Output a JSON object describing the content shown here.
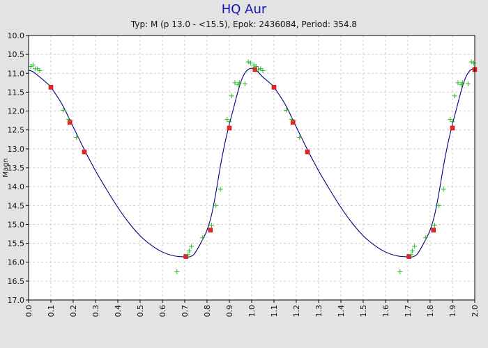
{
  "chart_data": {
    "type": "scatter",
    "title": "HQ Aur",
    "subtitle": "Typ: M (p 13.0 - <15.5), Epok: 2436084, Period: 354.8",
    "xlabel": "",
    "ylabel": "Magn",
    "xlim": [
      0.0,
      2.0
    ],
    "ylim": [
      10.0,
      17.0
    ],
    "y_inverted": true,
    "grid": true,
    "x_ticks": [
      "0.0",
      "0.1",
      "0.2",
      "0.3",
      "0.4",
      "0.5",
      "0.6",
      "0.7",
      "0.8",
      "0.9",
      "1.0",
      "1.1",
      "1.2",
      "1.3",
      "1.4",
      "1.5",
      "1.6",
      "1.7",
      "1.8",
      "1.9",
      "2.0"
    ],
    "y_ticks": [
      "10.0",
      "10.5",
      "11.0",
      "11.5",
      "12.0",
      "12.5",
      "13.0",
      "13.5",
      "14.0",
      "14.5",
      "15.0",
      "15.5",
      "16.0",
      "16.5",
      "17.0"
    ],
    "series": [
      {
        "kind": "curve",
        "color": "#00007f",
        "x": [
          0.0,
          0.02,
          0.05,
          0.08,
          0.1,
          0.15,
          0.2,
          0.25,
          0.3,
          0.35,
          0.4,
          0.45,
          0.5,
          0.55,
          0.6,
          0.65,
          0.7,
          0.72,
          0.74,
          0.76,
          0.78,
          0.8,
          0.82,
          0.84,
          0.86,
          0.88,
          0.9,
          0.92,
          0.94,
          0.96,
          0.98,
          1.0,
          1.02,
          1.05,
          1.08,
          1.1,
          1.15,
          1.2,
          1.25,
          1.3,
          1.35,
          1.4,
          1.45,
          1.5,
          1.55,
          1.6,
          1.65,
          1.7,
          1.72,
          1.74,
          1.76,
          1.78,
          1.8,
          1.82,
          1.84,
          1.86,
          1.88,
          1.9,
          1.92,
          1.94,
          1.96,
          1.98,
          2.0
        ],
        "y": [
          10.92,
          10.96,
          11.1,
          11.25,
          11.37,
          11.82,
          12.42,
          13.02,
          13.58,
          14.08,
          14.55,
          14.96,
          15.3,
          15.55,
          15.73,
          15.83,
          15.86,
          15.86,
          15.8,
          15.62,
          15.4,
          15.15,
          14.75,
          14.15,
          13.45,
          12.85,
          12.35,
          11.9,
          11.45,
          11.1,
          10.92,
          10.87,
          10.92,
          11.1,
          11.25,
          11.37,
          11.82,
          12.42,
          13.02,
          13.58,
          14.08,
          14.55,
          14.96,
          15.3,
          15.55,
          15.73,
          15.83,
          15.86,
          15.86,
          15.8,
          15.62,
          15.4,
          15.15,
          14.75,
          14.15,
          13.45,
          12.85,
          12.35,
          11.9,
          11.45,
          11.1,
          10.92,
          10.87
        ]
      },
      {
        "kind": "markers",
        "marker": "square",
        "color": "#ee2222",
        "x": [
          0.1,
          0.185,
          0.25,
          0.705,
          0.815,
          0.9,
          1.015,
          1.1,
          1.185,
          1.25,
          1.705,
          1.815,
          1.9,
          2.0
        ],
        "y": [
          11.37,
          12.3,
          13.08,
          15.85,
          15.15,
          12.45,
          10.9,
          11.37,
          12.3,
          13.08,
          15.85,
          15.15,
          12.45,
          10.9
        ]
      },
      {
        "kind": "markers",
        "marker": "plus",
        "color": "#22bb22",
        "x": [
          0.01,
          0.02,
          0.03,
          0.04,
          0.05,
          0.155,
          0.18,
          0.215,
          0.665,
          0.715,
          0.72,
          0.73,
          0.78,
          0.82,
          0.84,
          0.86,
          0.89,
          0.9,
          0.91,
          0.925,
          0.94,
          0.945,
          0.97,
          0.985,
          0.995,
          1.01,
          1.02,
          1.03,
          1.04,
          1.05,
          1.155,
          1.18,
          1.215,
          1.665,
          1.715,
          1.72,
          1.73,
          1.78,
          1.82,
          1.84,
          1.86,
          1.89,
          1.9,
          1.91,
          1.925,
          1.94,
          1.945,
          1.97,
          1.985,
          1.995
        ],
        "y": [
          10.82,
          10.78,
          10.88,
          10.88,
          10.93,
          11.98,
          12.22,
          12.7,
          16.25,
          15.8,
          15.7,
          15.58,
          15.35,
          15.02,
          14.5,
          14.07,
          12.22,
          12.28,
          11.6,
          11.25,
          11.3,
          11.25,
          11.28,
          10.7,
          10.73,
          10.78,
          10.82,
          10.9,
          10.88,
          10.93,
          11.98,
          12.22,
          12.7,
          16.25,
          15.8,
          15.7,
          15.58,
          15.35,
          15.02,
          14.5,
          14.07,
          12.22,
          12.28,
          11.6,
          11.25,
          11.3,
          11.25,
          11.28,
          10.7,
          10.73
        ]
      }
    ]
  }
}
